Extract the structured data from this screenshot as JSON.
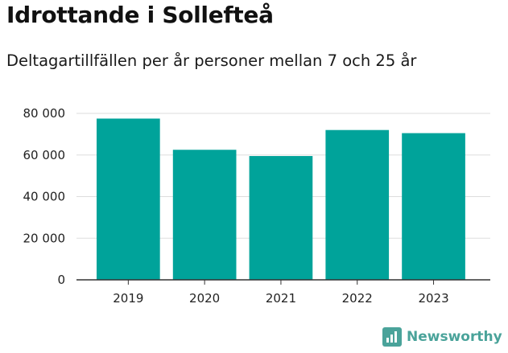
{
  "title": "Idrottande i Sollefteå",
  "subtitle": "Deltagartillfällen per år personer mellan 7 och 25 år",
  "brand": {
    "name": "Newsworthy",
    "logo_icon": "bar-chart-icon"
  },
  "chart_data": {
    "type": "bar",
    "categories": [
      "2019",
      "2020",
      "2021",
      "2022",
      "2023"
    ],
    "values": [
      77500,
      62500,
      59500,
      72000,
      70500
    ],
    "ylim": [
      0,
      80000
    ],
    "yticks": [
      0,
      20000,
      40000,
      60000,
      80000
    ],
    "ytick_labels": [
      "0",
      "20 000",
      "40 000",
      "60 000",
      "80 000"
    ],
    "grid": true,
    "bar_color": "#00a39a",
    "grid_color": "#dddddd"
  }
}
